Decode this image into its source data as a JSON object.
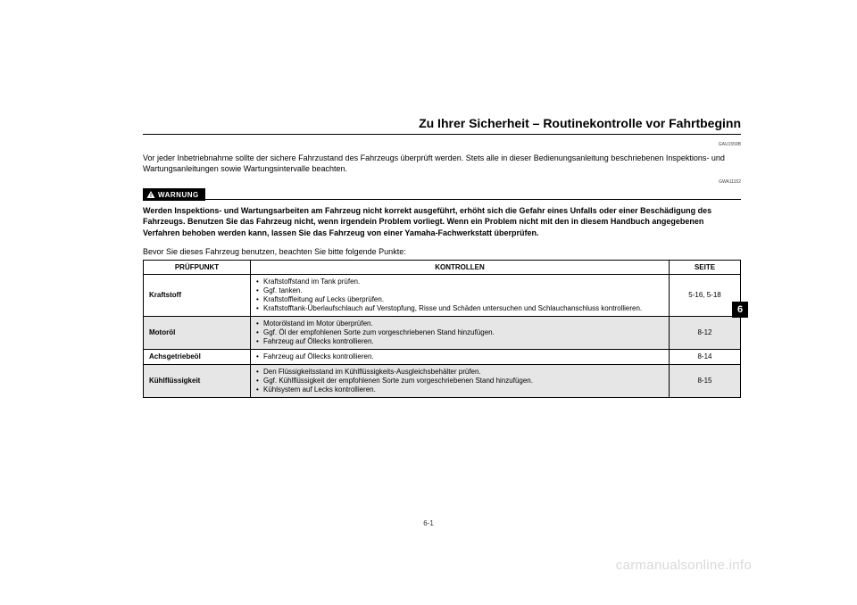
{
  "header": {
    "title": "Zu Ihrer Sicherheit – Routinekontrolle vor Fahrtbeginn",
    "code1": "GAU1559B",
    "code2": "GWA11152"
  },
  "intro": "Vor jeder Inbetriebnahme sollte der sichere Fahrzustand des Fahrzeugs überprüft werden. Stets alle in dieser Bedienungsanleitung beschriebenen Inspektions- und Wartungsanleitungen sowie Wartungsintervalle beachten.",
  "warning": {
    "label": "WARNUNG",
    "text": "Werden Inspektions- und Wartungsarbeiten am Fahrzeug nicht korrekt ausgeführt, erhöht sich die Gefahr eines Unfalls oder einer Beschädigung des Fahrzeugs. Benutzen Sie das Fahrzeug nicht, wenn irgendein Problem vorliegt. Wenn ein Problem nicht mit den in diesem Handbuch angegebenen Verfahren behoben werden kann, lassen Sie das Fahrzeug von einer Yamaha-Fachwerkstatt überprüfen."
  },
  "before_text": "Bevor Sie dieses Fahrzeug benutzen, beachten Sie bitte folgende Punkte:",
  "table": {
    "headers": {
      "point": "PRÜFPUNKT",
      "controls": "KONTROLLEN",
      "page": "SEITE"
    },
    "rows": [
      {
        "shaded": false,
        "point": "Kraftstoff",
        "controls": [
          "Kraftstoffstand im Tank prüfen.",
          "Ggf. tanken.",
          "Kraftstoffleitung auf Lecks überprüfen.",
          "Kraftstofftank-Überlaufschlauch auf Verstopfung, Risse und Schäden untersuchen und Schlauchanschluss kontrollieren."
        ],
        "page": "5-16, 5-18"
      },
      {
        "shaded": true,
        "point": "Motoröl",
        "controls": [
          "Motorölstand im Motor überprüfen.",
          "Ggf. Öl der empfohlenen Sorte zum vorgeschriebenen Stand hinzufügen.",
          "Fahrzeug auf Öllecks kontrollieren."
        ],
        "page": "8-12"
      },
      {
        "shaded": false,
        "point": "Achsgetriebeöl",
        "controls": [
          "Fahrzeug auf Öllecks kontrollieren."
        ],
        "page": "8-14"
      },
      {
        "shaded": true,
        "point": "Kühlflüssigkeit",
        "controls": [
          "Den Flüssigkeitsstand im Kühlflüssigkeits-Ausgleichsbehälter prüfen.",
          "Ggf. Kühlflüssigkeit der empfohlenen Sorte zum vorgeschriebenen Stand hinzufügen.",
          "Kühlsystem auf Lecks kontrollieren."
        ],
        "page": "8-15"
      }
    ]
  },
  "side_tab": "6",
  "page_number": "6-1",
  "watermark": "carmanualsonline.info"
}
